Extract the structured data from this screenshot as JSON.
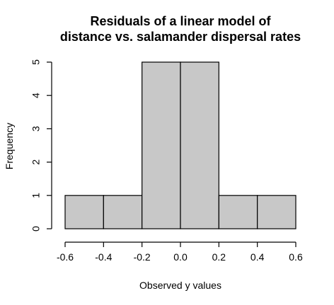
{
  "chart_data": {
    "type": "bar",
    "subtype": "histogram",
    "title": "Residuals of a linear model of",
    "subtitle": "distance vs. salamander dispersal rates",
    "xlabel": "Observed y values",
    "ylabel": "Frequency",
    "bin_edges": [
      -0.6,
      -0.4,
      -0.2,
      0.0,
      0.2,
      0.4,
      0.6
    ],
    "bins": [
      {
        "from": -0.6,
        "to": -0.4,
        "count": 1
      },
      {
        "from": -0.4,
        "to": -0.2,
        "count": 1
      },
      {
        "from": -0.2,
        "to": 0.0,
        "count": 5
      },
      {
        "from": 0.0,
        "to": 0.2,
        "count": 5
      },
      {
        "from": 0.2,
        "to": 0.4,
        "count": 1
      },
      {
        "from": 0.4,
        "to": 0.6,
        "count": 1
      }
    ],
    "xlim": [
      -0.6,
      0.6
    ],
    "ylim": [
      0,
      5
    ],
    "x_ticks": [
      "-0.6",
      "-0.4",
      "-0.2",
      "0.0",
      "0.2",
      "0.4",
      "0.6"
    ],
    "y_ticks": [
      "0",
      "1",
      "2",
      "3",
      "4",
      "5"
    ],
    "bar_color": "#c8c8c8",
    "edge_color": "#000000",
    "grid": false,
    "legend": "none"
  }
}
